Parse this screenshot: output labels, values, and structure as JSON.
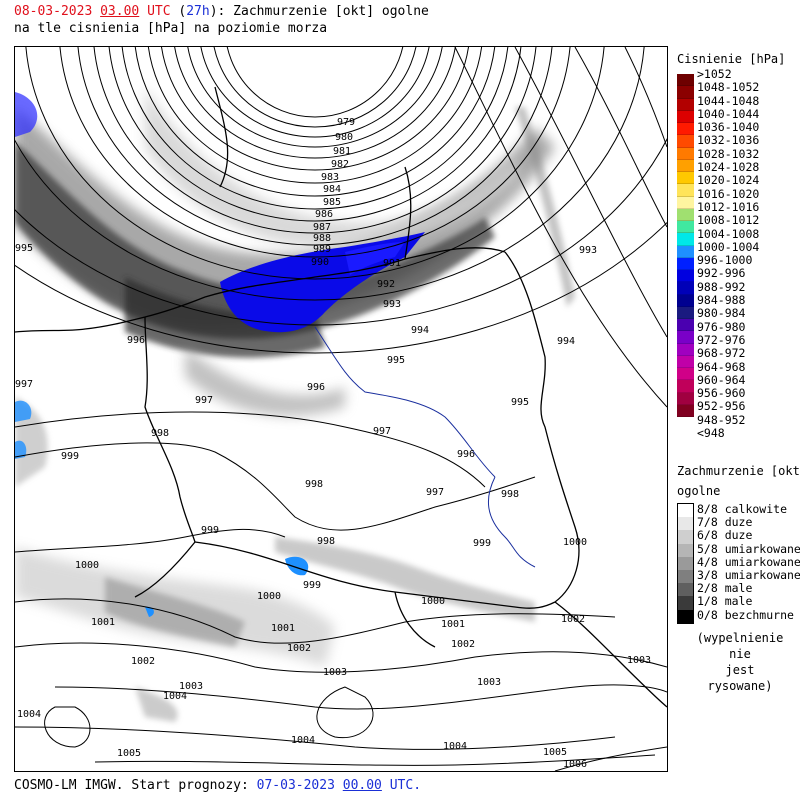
{
  "header": {
    "date": "08-03-2023",
    "hour": "03.00",
    "utc": "UTC",
    "lead": "27h",
    "title_rest": ": Zachmurzenie [okt] ogolne",
    "line2": "na tle cisnienia [hPa] na poziomie morza"
  },
  "footer": {
    "prefix": "COSMO-LM IMGW. Start prognozy: ",
    "date": "07-03-2023",
    "hour": "00.00",
    "suffix": "UTC."
  },
  "pressure_legend": {
    "title": "Cisnienie [hPa]",
    "items": [
      {
        "label": ">1052",
        "color": "#6e0000"
      },
      {
        "label": "1048-1052",
        "color": "#8b0000"
      },
      {
        "label": "1044-1048",
        "color": "#b20000"
      },
      {
        "label": "1040-1044",
        "color": "#dc0000"
      },
      {
        "label": "1036-1040",
        "color": "#ff1a00"
      },
      {
        "label": "1032-1036",
        "color": "#ff4a00"
      },
      {
        "label": "1028-1032",
        "color": "#ff7a00"
      },
      {
        "label": "1024-1028",
        "color": "#ffa000"
      },
      {
        "label": "1020-1024",
        "color": "#ffc800"
      },
      {
        "label": "1016-1020",
        "color": "#ffe45a"
      },
      {
        "label": "1012-1016",
        "color": "#fff5a0"
      },
      {
        "label": "1008-1012",
        "color": "#a0e070"
      },
      {
        "label": "1004-1008",
        "color": "#40e8a0"
      },
      {
        "label": "1000-1004",
        "color": "#00e8e8"
      },
      {
        "label": "996-1000",
        "color": "#1e90ff"
      },
      {
        "label": "992-996",
        "color": "#0020ff"
      },
      {
        "label": "988-992",
        "color": "#0000e0"
      },
      {
        "label": "984-988",
        "color": "#0000b8"
      },
      {
        "label": "980-984",
        "color": "#000090"
      },
      {
        "label": "976-980",
        "color": "#1a1a80"
      },
      {
        "label": "972-976",
        "color": "#4a00b0"
      },
      {
        "label": "968-972",
        "color": "#7a00c8"
      },
      {
        "label": "964-968",
        "color": "#a000c0"
      },
      {
        "label": "960-964",
        "color": "#c000a8"
      },
      {
        "label": "956-960",
        "color": "#d00088"
      },
      {
        "label": "952-956",
        "color": "#c0005a"
      },
      {
        "label": "948-952",
        "color": "#a00040"
      },
      {
        "label": "<948",
        "color": "#800020"
      }
    ]
  },
  "cloud_legend": {
    "title1": "Zachmurzenie [okt]",
    "title2": "ogolne",
    "items": [
      {
        "label": "8/8 calkowite",
        "color": "#ffffff"
      },
      {
        "label": "7/8 duze",
        "color": "#e8e8e8"
      },
      {
        "label": "6/8 duze",
        "color": "#cfcfcf"
      },
      {
        "label": "5/8 umiarkowane",
        "color": "#b5b5b5"
      },
      {
        "label": "4/8 umiarkowane",
        "color": "#9a9a9a"
      },
      {
        "label": "3/8 umiarkowane",
        "color": "#7f7f7f"
      },
      {
        "label": "2/8 male",
        "color": "#5f5f5f"
      },
      {
        "label": "1/8 male",
        "color": "#3a3a3a"
      },
      {
        "label": "0/8 bezchmurne",
        "color": "#000000"
      }
    ],
    "note_line1": "(wypelnienie nie",
    "note_line2": "jest rysowane)"
  },
  "isobar_labels": [
    "979",
    "980",
    "981",
    "982",
    "983",
    "984",
    "985",
    "986",
    "987",
    "988",
    "989",
    "990",
    "991",
    "992",
    "993",
    "994",
    "995",
    "996",
    "997",
    "998",
    "999",
    "1000",
    "1001",
    "1002",
    "1003",
    "1004",
    "1005",
    "1006"
  ]
}
